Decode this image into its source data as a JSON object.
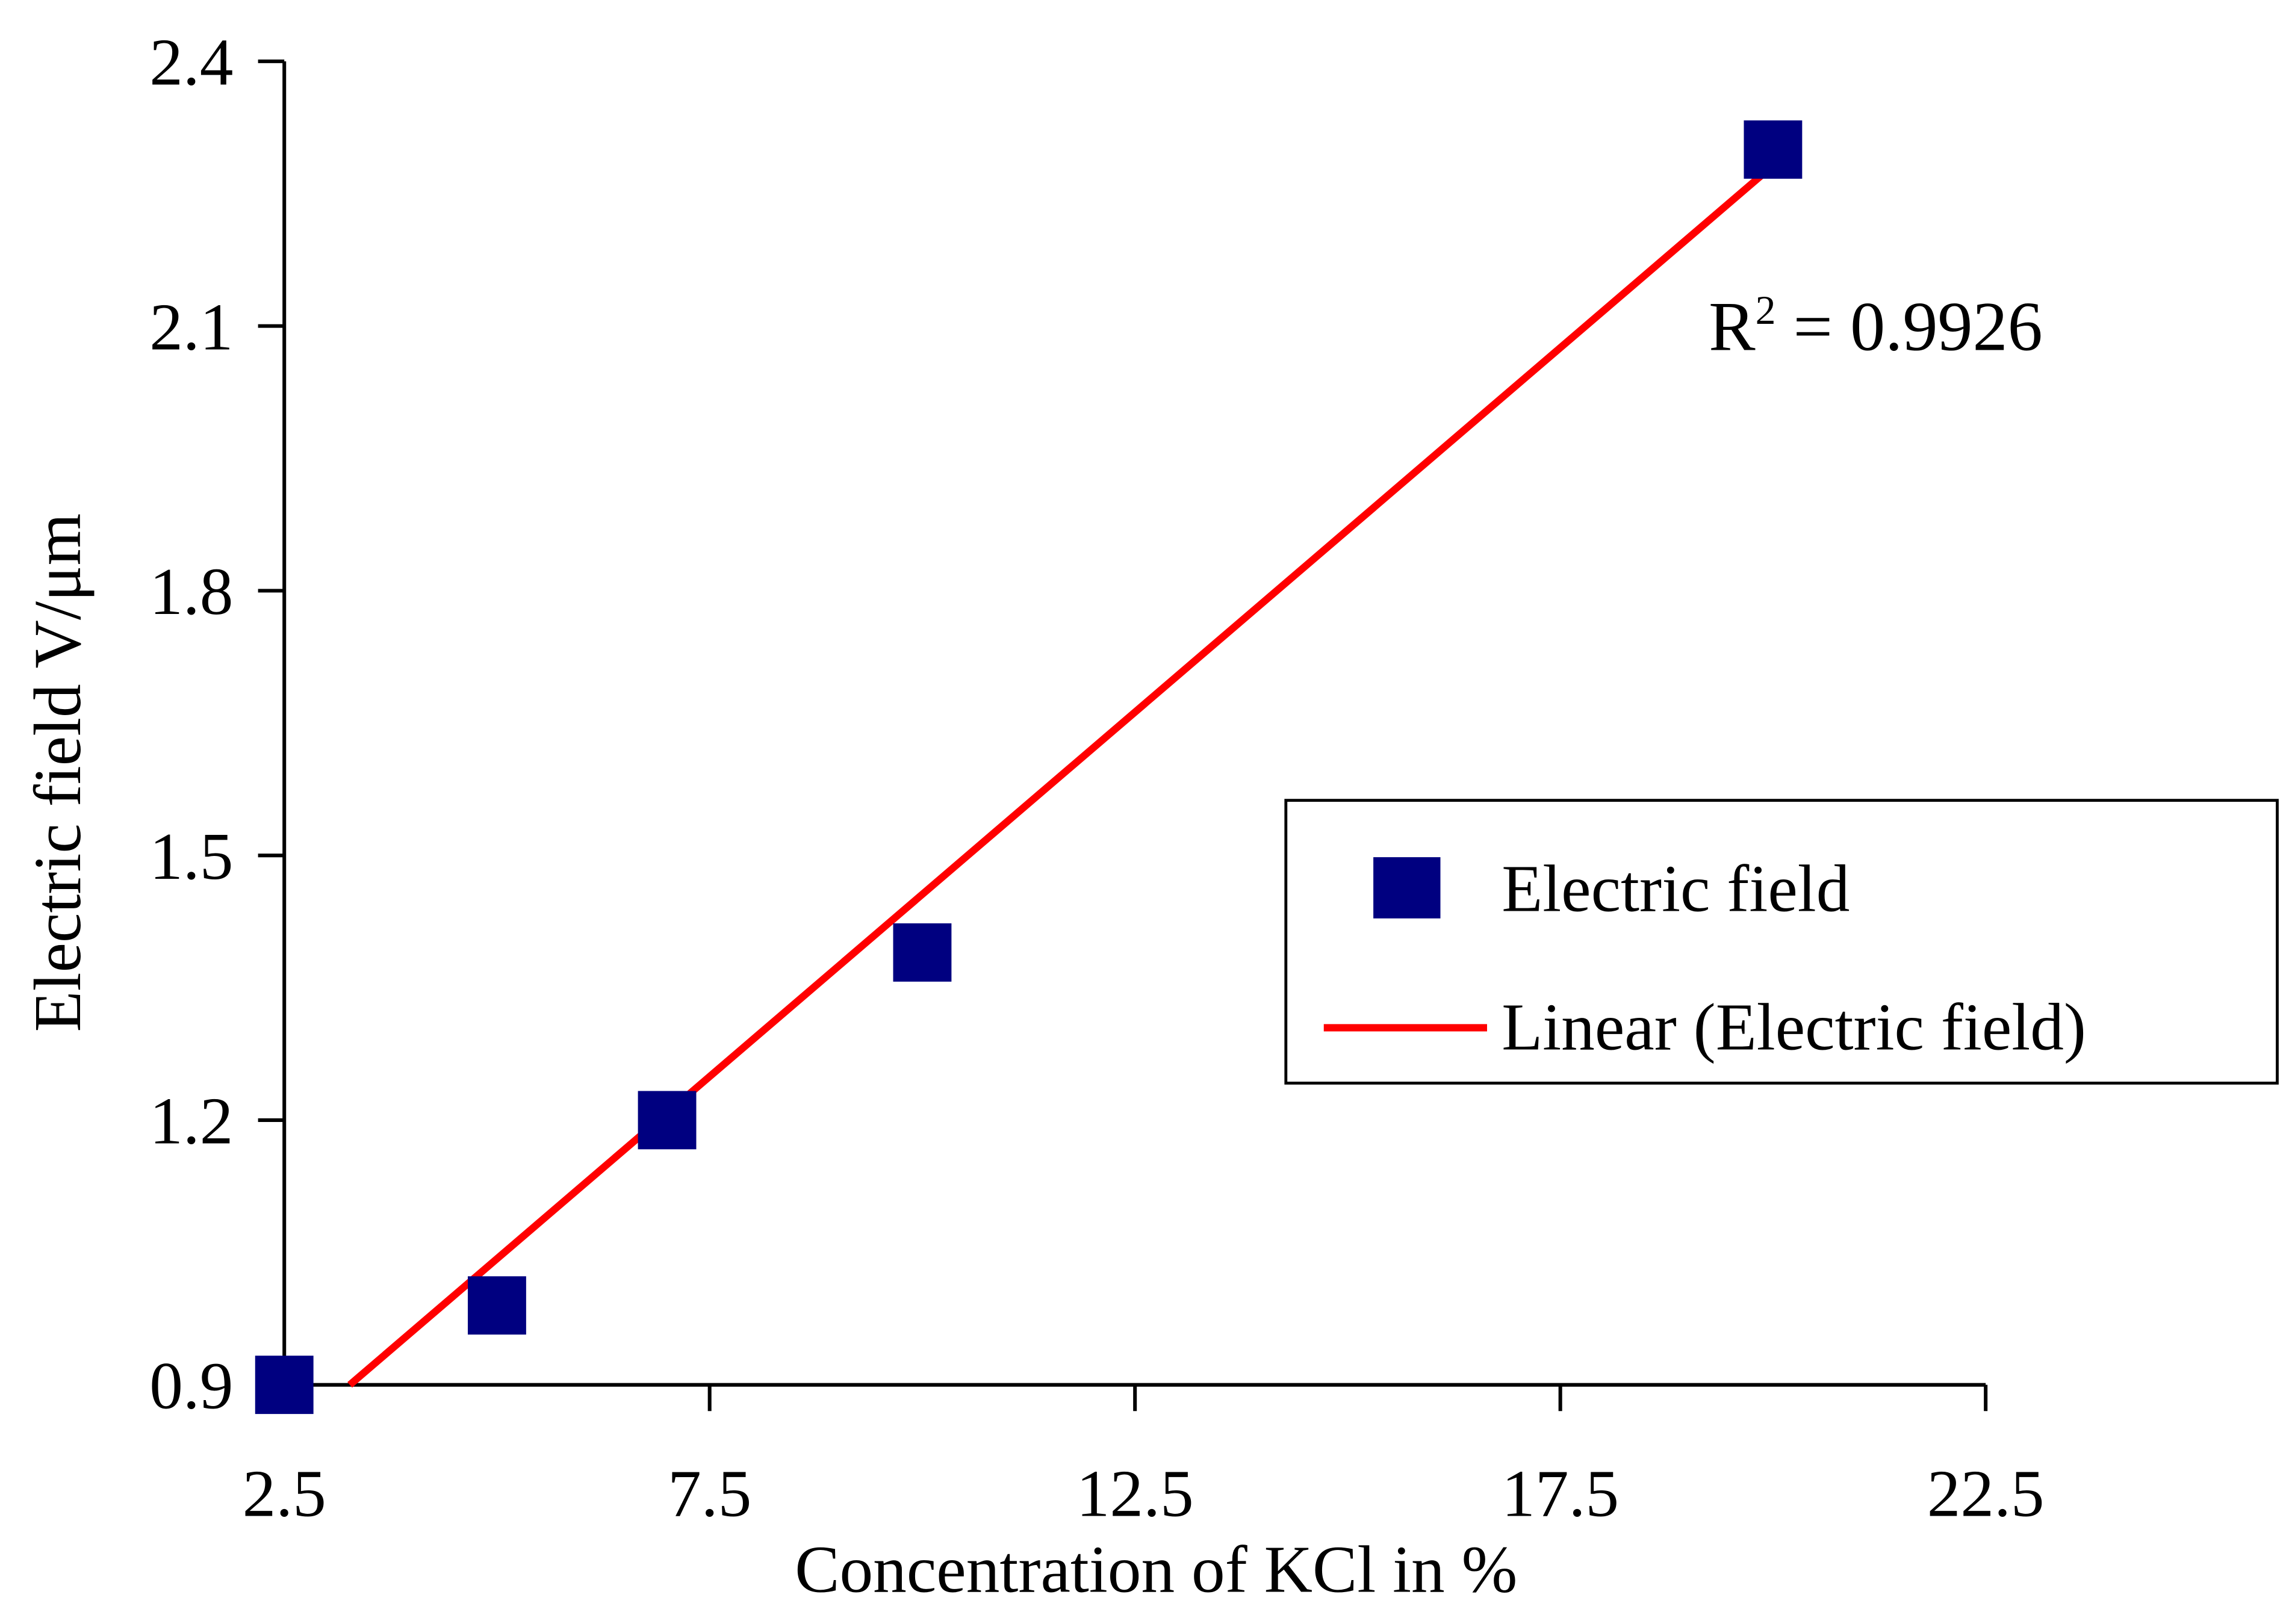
{
  "chart_data": {
    "type": "scatter",
    "title": "",
    "xlabel": "Concentration of KCl in %",
    "ylabel": "Electric field V/μm",
    "xlim": [
      2.5,
      22.5
    ],
    "ylim": [
      0.9,
      2.4
    ],
    "xticks": [
      "2.5",
      "7.5",
      "12.5",
      "17.5",
      "22.5"
    ],
    "yticks": [
      "0.9",
      "1.2",
      "1.5",
      "1.8",
      "2.1",
      "2.4"
    ],
    "grid": false,
    "legend_position": "right",
    "series": [
      {
        "name": "Electric field",
        "marker": "square",
        "color": "#000080",
        "x": [
          2.5,
          5,
          7,
          10,
          20
        ],
        "y": [
          0.9,
          0.99,
          1.2,
          1.39,
          2.3
        ]
      }
    ],
    "trendline": {
      "name": "Linear (Electric field)",
      "color": "#ff0000",
      "x": [
        3.27,
        19.94
      ],
      "y": [
        0.9,
        2.277
      ]
    },
    "annotation": {
      "prefix": "R",
      "sup": "2",
      "text": " = 0.9926"
    }
  }
}
